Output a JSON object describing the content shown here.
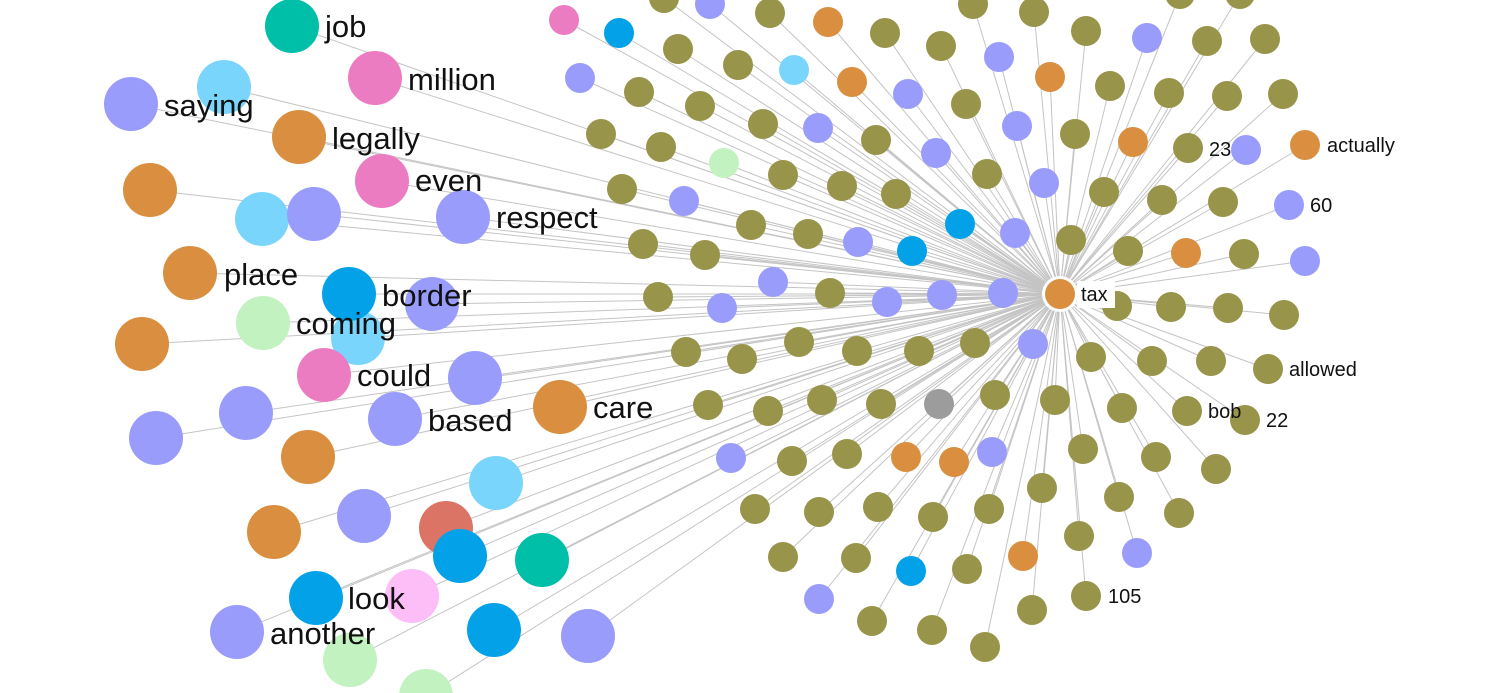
{
  "colors": {
    "olive": "#98944a",
    "lavender": "#9a9cfc",
    "orange": "#d98f3f",
    "lightblue": "#7ad5fd",
    "blue": "#03a2e8",
    "pink": "#ec7cc2",
    "teal": "#00bfa8",
    "lightgreen": "#c2f2c0",
    "salmon": "#dc7466",
    "lightpink": "#fdbef8",
    "gray": "#9c9c9c",
    "edge": "#c4c4c4"
  },
  "graph": {
    "center": {
      "label": "tax",
      "color": "orange"
    },
    "labeled_nodes": [
      {
        "label": "job",
        "color": "teal",
        "size": "big"
      },
      {
        "label": "million",
        "color": "pink",
        "size": "big"
      },
      {
        "label": "saying",
        "color": "lavender",
        "size": "big"
      },
      {
        "label": "legally",
        "color": "orange",
        "size": "big"
      },
      {
        "label": "even",
        "color": "pink",
        "size": "big"
      },
      {
        "label": "respect",
        "color": "lavender",
        "size": "big"
      },
      {
        "label": "place",
        "color": "orange",
        "size": "big"
      },
      {
        "label": "border",
        "color": "blue",
        "size": "big"
      },
      {
        "label": "coming",
        "color": "lightgreen",
        "size": "big"
      },
      {
        "label": "could",
        "color": "pink",
        "size": "big"
      },
      {
        "label": "based",
        "color": "lavender",
        "size": "big"
      },
      {
        "label": "care",
        "color": "orange",
        "size": "big"
      },
      {
        "label": "look",
        "color": "blue",
        "size": "big"
      },
      {
        "label": "another",
        "color": "lavender",
        "size": "big"
      },
      {
        "label": "23",
        "color": "olive",
        "size": "small"
      },
      {
        "label": "actually",
        "color": "orange",
        "size": "small"
      },
      {
        "label": "60",
        "color": "lavender",
        "size": "small"
      },
      {
        "label": "allowed",
        "color": "olive",
        "size": "small"
      },
      {
        "label": "bob",
        "color": "olive",
        "size": "small"
      },
      {
        "label": "22",
        "color": "olive",
        "size": "small"
      },
      {
        "label": "105",
        "color": "olive",
        "size": "small"
      }
    ]
  }
}
